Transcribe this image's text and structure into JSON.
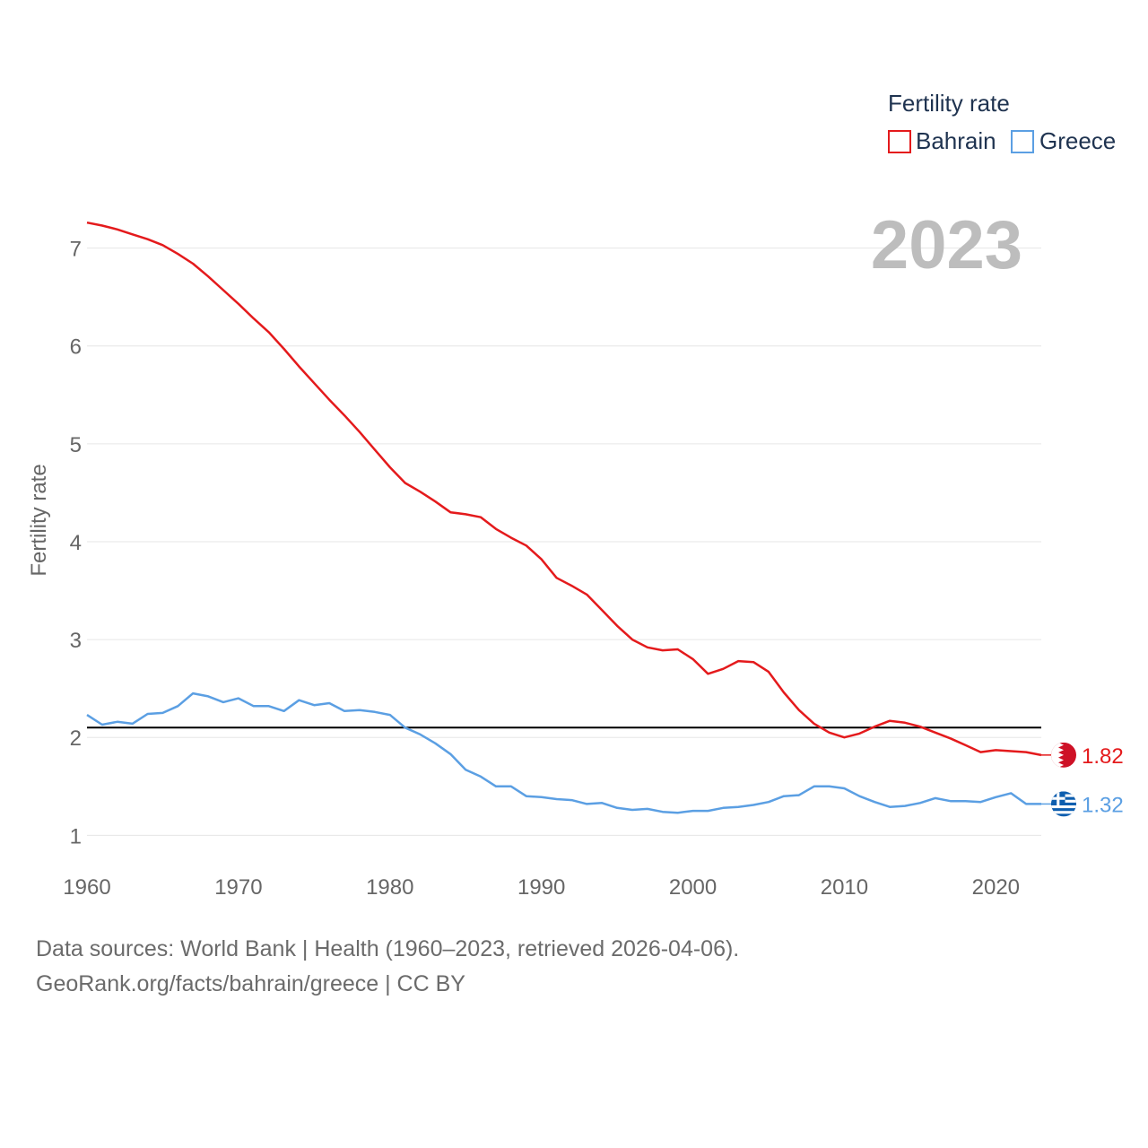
{
  "chart_data": {
    "type": "line",
    "ylabel": "Fertility rate",
    "xlabel": "",
    "xlim": [
      1960,
      2023
    ],
    "ylim": [
      0.6,
      7.5
    ],
    "x_ticks": [
      "1960",
      "1970",
      "1980",
      "1990",
      "2000",
      "2010",
      "2020"
    ],
    "y_ticks": [
      "1",
      "2",
      "3",
      "4",
      "5",
      "6",
      "7"
    ],
    "x_tick_values": [
      1960,
      1970,
      1980,
      1990,
      2000,
      2010,
      2020
    ],
    "y_tick_values": [
      1,
      2,
      3,
      4,
      5,
      6,
      7
    ],
    "year_label": "2023",
    "legend": {
      "title": "Fertility rate",
      "position": "top-right"
    },
    "reference_line": {
      "value": 2.1,
      "color": "#000000"
    },
    "years": [
      1960,
      1961,
      1962,
      1963,
      1964,
      1965,
      1966,
      1967,
      1968,
      1969,
      1970,
      1971,
      1972,
      1973,
      1974,
      1975,
      1976,
      1977,
      1978,
      1979,
      1980,
      1981,
      1982,
      1983,
      1984,
      1985,
      1986,
      1987,
      1988,
      1989,
      1990,
      1991,
      1992,
      1993,
      1994,
      1995,
      1996,
      1997,
      1998,
      1999,
      2000,
      2001,
      2002,
      2003,
      2004,
      2005,
      2006,
      2007,
      2008,
      2009,
      2010,
      2011,
      2012,
      2013,
      2014,
      2015,
      2016,
      2017,
      2018,
      2019,
      2020,
      2021,
      2022,
      2023
    ],
    "series": [
      {
        "name": "Bahrain",
        "color": "#e41a1c",
        "end_label": "1.82",
        "flag": "bahrain-flag-icon",
        "values": [
          7.26,
          7.23,
          7.19,
          7.14,
          7.09,
          7.03,
          6.94,
          6.84,
          6.71,
          6.57,
          6.43,
          6.28,
          6.14,
          5.97,
          5.79,
          5.62,
          5.45,
          5.29,
          5.12,
          4.94,
          4.76,
          4.6,
          4.51,
          4.41,
          4.3,
          4.28,
          4.25,
          4.13,
          4.04,
          3.96,
          3.82,
          3.63,
          3.55,
          3.46,
          3.3,
          3.14,
          3.0,
          2.92,
          2.89,
          2.9,
          2.8,
          2.65,
          2.7,
          2.78,
          2.77,
          2.67,
          2.46,
          2.28,
          2.14,
          2.05,
          2.0,
          2.04,
          2.11,
          2.17,
          2.15,
          2.11,
          2.05,
          1.99,
          1.92,
          1.85,
          1.87,
          1.86,
          1.85,
          1.82
        ]
      },
      {
        "name": "Greece",
        "color": "#5b9fe3",
        "end_label": "1.32",
        "flag": "greece-flag-icon",
        "values": [
          2.23,
          2.13,
          2.16,
          2.14,
          2.24,
          2.25,
          2.32,
          2.45,
          2.42,
          2.36,
          2.4,
          2.32,
          2.32,
          2.27,
          2.38,
          2.33,
          2.35,
          2.27,
          2.28,
          2.26,
          2.23,
          2.1,
          2.03,
          1.94,
          1.83,
          1.67,
          1.6,
          1.5,
          1.5,
          1.4,
          1.39,
          1.37,
          1.36,
          1.32,
          1.33,
          1.28,
          1.26,
          1.27,
          1.24,
          1.23,
          1.25,
          1.25,
          1.28,
          1.29,
          1.31,
          1.34,
          1.4,
          1.41,
          1.5,
          1.5,
          1.48,
          1.4,
          1.34,
          1.29,
          1.3,
          1.33,
          1.38,
          1.35,
          1.35,
          1.34,
          1.39,
          1.43,
          1.32,
          1.32
        ]
      }
    ]
  },
  "footer": {
    "line1": "Data sources: World Bank | Health (1960–2023, retrieved 2026-04-06).",
    "line2": "GeoRank.org/facts/bahrain/greece | CC BY"
  }
}
